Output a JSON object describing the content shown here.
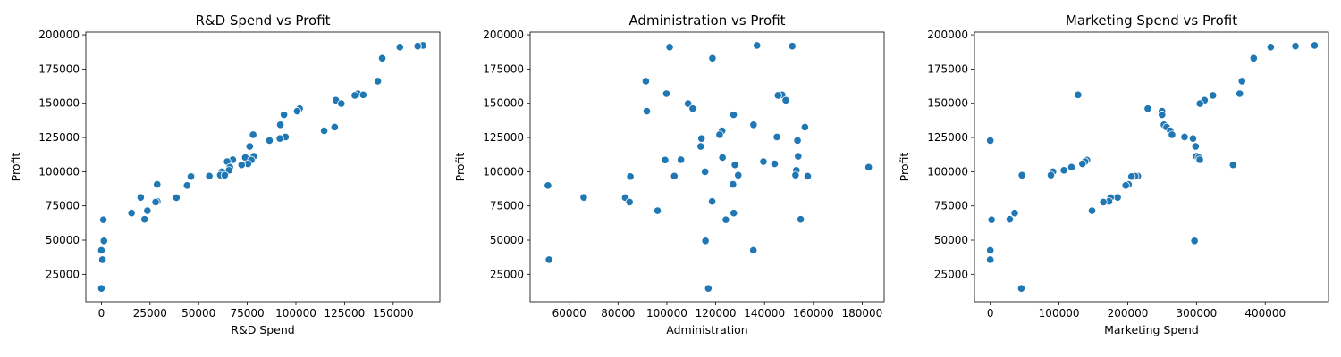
{
  "chart_data": [
    {
      "type": "scatter",
      "title": "R&D Spend vs Profit",
      "xlabel": "R&D Spend",
      "ylabel": "Profit",
      "xlim": [
        -8000,
        174000
      ],
      "ylim": [
        5000,
        202000
      ],
      "xticks": [
        0,
        25000,
        50000,
        75000,
        100000,
        125000,
        150000
      ],
      "yticks": [
        25000,
        50000,
        75000,
        100000,
        125000,
        150000,
        175000,
        200000
      ],
      "color": "#1f77b4",
      "points": [
        [
          165349,
          192262
        ],
        [
          162598,
          191792
        ],
        [
          153442,
          191050
        ],
        [
          144372,
          182902
        ],
        [
          142107,
          166188
        ],
        [
          131877,
          156991
        ],
        [
          134615,
          156123
        ],
        [
          130298,
          155753
        ],
        [
          120543,
          152212
        ],
        [
          123335,
          149760
        ],
        [
          101913,
          146122
        ],
        [
          100672,
          144259
        ],
        [
          93864,
          141586
        ],
        [
          91992,
          134307
        ],
        [
          119943,
          132603
        ],
        [
          114524,
          129917
        ],
        [
          78013,
          126993
        ],
        [
          94657,
          125371
        ],
        [
          91749,
          124267
        ],
        [
          86420,
          122777
        ],
        [
          76254,
          118474
        ],
        [
          78389,
          111313
        ],
        [
          73995,
          110352
        ],
        [
          67533,
          108734
        ],
        [
          77044,
          108552
        ],
        [
          64665,
          107404
        ],
        [
          75329,
          105734
        ],
        [
          72108,
          105008
        ],
        [
          66052,
          103282
        ],
        [
          65606,
          101005
        ],
        [
          61995,
          99938
        ],
        [
          61137,
          97484
        ],
        [
          63409,
          97427
        ],
        [
          55494,
          96779
        ],
        [
          46427,
          96713
        ],
        [
          46014,
          96480
        ],
        [
          28664,
          90708
        ],
        [
          44070,
          89949
        ],
        [
          20229,
          81230
        ],
        [
          38559,
          81006
        ],
        [
          28754,
          78240
        ],
        [
          27893,
          77799
        ],
        [
          23641,
          71499
        ],
        [
          15506,
          69759
        ],
        [
          22178,
          65200
        ],
        [
          1001,
          64927
        ],
        [
          1315,
          49491
        ],
        [
          0,
          42560
        ],
        [
          542,
          35673
        ],
        [
          0,
          14681
        ]
      ]
    },
    {
      "type": "scatter",
      "title": "Administration vs Profit",
      "xlabel": "Administration",
      "ylabel": "Profit",
      "xlim": [
        44000,
        189000
      ],
      "ylim": [
        5000,
        202000
      ],
      "xticks": [
        60000,
        80000,
        100000,
        120000,
        140000,
        160000,
        180000
      ],
      "yticks": [
        25000,
        50000,
        75000,
        100000,
        125000,
        150000,
        175000,
        200000
      ],
      "color": "#1f77b4",
      "points": [
        [
          136898,
          192262
        ],
        [
          151378,
          191792
        ],
        [
          101146,
          191050
        ],
        [
          118672,
          182902
        ],
        [
          91392,
          166188
        ],
        [
          99815,
          156991
        ],
        [
          147199,
          156123
        ],
        [
          145530,
          155753
        ],
        [
          148719,
          152212
        ],
        [
          108679,
          149760
        ],
        [
          110594,
          146122
        ],
        [
          91791,
          144259
        ],
        [
          127320,
          141586
        ],
        [
          135495,
          134307
        ],
        [
          156547,
          132603
        ],
        [
          122617,
          129917
        ],
        [
          121598,
          126993
        ],
        [
          145077,
          125371
        ],
        [
          114176,
          124267
        ],
        [
          153514,
          122777
        ],
        [
          113867,
          118474
        ],
        [
          153773,
          111313
        ],
        [
          122783,
          110352
        ],
        [
          105751,
          108734
        ],
        [
          99281,
          108552
        ],
        [
          139553,
          107404
        ],
        [
          144136,
          105734
        ],
        [
          127865,
          105008
        ],
        [
          182646,
          103282
        ],
        [
          153032,
          101005
        ],
        [
          115642,
          99938
        ],
        [
          152702,
          97484
        ],
        [
          129220,
          97427
        ],
        [
          103057,
          96779
        ],
        [
          157694,
          96713
        ],
        [
          85047,
          96480
        ],
        [
          127056,
          90708
        ],
        [
          51283,
          89949
        ],
        [
          65948,
          81230
        ],
        [
          82982,
          81006
        ],
        [
          118546,
          78240
        ],
        [
          84711,
          77799
        ],
        [
          96189,
          71499
        ],
        [
          127382,
          69759
        ],
        [
          154806,
          65200
        ],
        [
          124153,
          64927
        ],
        [
          115816,
          49491
        ],
        [
          135427,
          42560
        ],
        [
          51743,
          35673
        ],
        [
          116984,
          14681
        ]
      ]
    },
    {
      "type": "scatter",
      "title": "Marketing Spend vs Profit",
      "xlabel": "Marketing Spend",
      "ylabel": "Profit",
      "xlim": [
        -23000,
        492000
      ],
      "ylim": [
        5000,
        202000
      ],
      "xticks": [
        0,
        100000,
        200000,
        300000,
        400000
      ],
      "yticks": [
        25000,
        50000,
        75000,
        100000,
        125000,
        150000,
        175000,
        200000
      ],
      "color": "#1f77b4",
      "points": [
        [
          471784,
          192262
        ],
        [
          443899,
          191792
        ],
        [
          407935,
          191050
        ],
        [
          383200,
          182902
        ],
        [
          366168,
          166188
        ],
        [
          362861,
          156991
        ],
        [
          127717,
          156123
        ],
        [
          323877,
          155753
        ],
        [
          311613,
          152212
        ],
        [
          304982,
          149760
        ],
        [
          229161,
          146122
        ],
        [
          249745,
          144259
        ],
        [
          249839,
          141586
        ],
        [
          252665,
          134307
        ],
        [
          256513,
          132603
        ],
        [
          261776,
          129917
        ],
        [
          264346,
          126993
        ],
        [
          282574,
          125371
        ],
        [
          294920,
          124267
        ],
        [
          0,
          122777
        ],
        [
          298664,
          118474
        ],
        [
          299738,
          111313
        ],
        [
          303319,
          110352
        ],
        [
          304768,
          108734
        ],
        [
          140575,
          108552
        ],
        [
          137962,
          107404
        ],
        [
          134051,
          105734
        ],
        [
          353184,
          105008
        ],
        [
          118148,
          103282
        ],
        [
          107138,
          101005
        ],
        [
          91131,
          99938
        ],
        [
          88219,
          97484
        ],
        [
          46085,
          97427
        ],
        [
          214635,
          96779
        ],
        [
          210798,
          96713
        ],
        [
          205518,
          96480
        ],
        [
          201127,
          90708
        ],
        [
          197029,
          89949
        ],
        [
          185265,
          81230
        ],
        [
          174999,
          81006
        ],
        [
          172795,
          78240
        ],
        [
          164471,
          77799
        ],
        [
          148001,
          71499
        ],
        [
          35534,
          69759
        ],
        [
          28335,
          65200
        ],
        [
          1904,
          64927
        ],
        [
          297114,
          49491
        ],
        [
          0,
          42560
        ],
        [
          0,
          35673
        ],
        [
          45173,
          14681
        ]
      ]
    }
  ]
}
